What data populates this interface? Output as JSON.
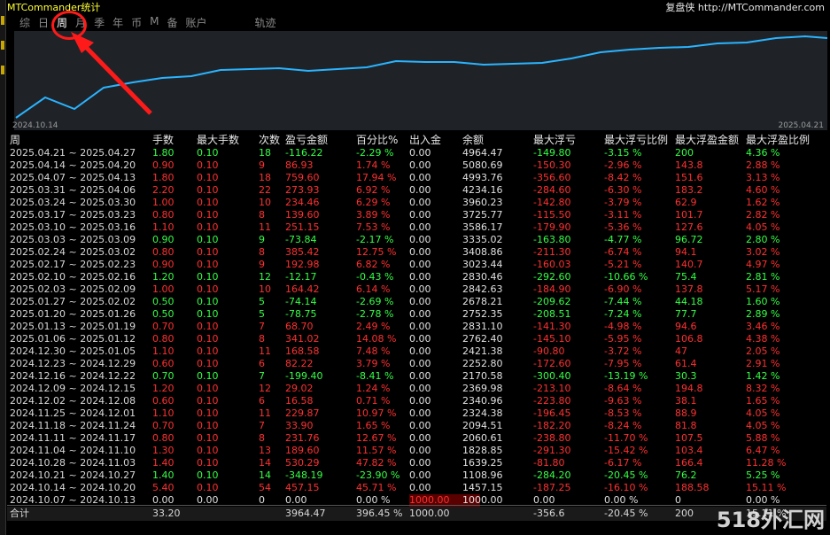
{
  "window": {
    "title": "MTCommander统计",
    "replay_label": "复盘侠 http://MTCommander.com"
  },
  "tabs": [
    "综",
    "日",
    "周",
    "月",
    "季",
    "年",
    "币",
    "M",
    "备",
    "账户",
    "轨迹"
  ],
  "selected_tab": "周",
  "chart": {
    "start_date": "2024.10.14",
    "end_date": "2025.04.21",
    "line_color": "#2ab4ff",
    "background": "#1f2328"
  },
  "table": {
    "headers": [
      "周",
      "手数",
      "最大手数",
      "次数",
      "盈亏金额",
      "百分比%",
      "出入金",
      "余额",
      "最大浮亏",
      "最大浮亏比例",
      "最大浮盈金额",
      "最大浮盈比例"
    ],
    "rows": [
      [
        "2025.04.21 ~ 2025.04.27",
        "1.80",
        "0.10",
        "18",
        "-116.22",
        "-2.29 %",
        "0.00",
        "4964.47",
        "-149.80",
        "-3.15 %",
        "200",
        "4.36 %"
      ],
      [
        "2025.04.14 ~ 2025.04.20",
        "0.90",
        "0.10",
        "9",
        "86.93",
        "1.74 %",
        "0.00",
        "5080.69",
        "-150.30",
        "-2.96 %",
        "143.8",
        "2.88 %"
      ],
      [
        "2025.04.07 ~ 2025.04.13",
        "1.80",
        "0.10",
        "18",
        "759.60",
        "17.94 %",
        "0.00",
        "4993.76",
        "-356.60",
        "-8.42 %",
        "151.6",
        "3.13 %"
      ],
      [
        "2025.03.31 ~ 2025.04.06",
        "2.20",
        "0.10",
        "22",
        "273.93",
        "6.92 %",
        "0.00",
        "4234.16",
        "-284.60",
        "-6.30 %",
        "183.2",
        "4.60 %"
      ],
      [
        "2025.03.24 ~ 2025.03.30",
        "1.00",
        "0.10",
        "10",
        "234.46",
        "6.29 %",
        "0.00",
        "3960.23",
        "-142.80",
        "-3.79 %",
        "62.9",
        "1.62 %"
      ],
      [
        "2025.03.17 ~ 2025.03.23",
        "0.80",
        "0.10",
        "8",
        "139.60",
        "3.89 %",
        "0.00",
        "3725.77",
        "-115.50",
        "-3.11 %",
        "101.7",
        "2.82 %"
      ],
      [
        "2025.03.10 ~ 2025.03.16",
        "1.10",
        "0.10",
        "11",
        "251.15",
        "7.53 %",
        "0.00",
        "3586.17",
        "-179.90",
        "-5.36 %",
        "127.6",
        "4.05 %"
      ],
      [
        "2025.03.03 ~ 2025.03.09",
        "0.90",
        "0.10",
        "9",
        "-73.84",
        "-2.17 %",
        "0.00",
        "3335.02",
        "-163.80",
        "-4.77 %",
        "96.72",
        "2.80 %"
      ],
      [
        "2025.02.24 ~ 2025.03.02",
        "0.80",
        "0.10",
        "8",
        "385.42",
        "12.75 %",
        "0.00",
        "3408.86",
        "-211.30",
        "-6.74 %",
        "94.1",
        "3.02 %"
      ],
      [
        "2025.02.17 ~ 2025.02.23",
        "0.90",
        "0.10",
        "9",
        "192.98",
        "6.82 %",
        "0.00",
        "3023.44",
        "-160.03",
        "-5.21 %",
        "140.7",
        "4.97 %"
      ],
      [
        "2025.02.10 ~ 2025.02.16",
        "1.20",
        "0.10",
        "12",
        "-12.17",
        "-0.43 %",
        "0.00",
        "2830.46",
        "-292.60",
        "-10.66 %",
        "75.4",
        "2.81 %"
      ],
      [
        "2025.02.03 ~ 2025.02.09",
        "1.00",
        "0.10",
        "10",
        "164.42",
        "6.14 %",
        "0.00",
        "2842.63",
        "-184.90",
        "-6.90 %",
        "137.8",
        "5.17 %"
      ],
      [
        "2025.01.27 ~ 2025.02.02",
        "0.50",
        "0.10",
        "5",
        "-74.14",
        "-2.69 %",
        "0.00",
        "2678.21",
        "-209.62",
        "-7.44 %",
        "44.18",
        "1.60 %"
      ],
      [
        "2025.01.20 ~ 2025.01.26",
        "0.50",
        "0.10",
        "5",
        "-78.75",
        "-2.78 %",
        "0.00",
        "2752.35",
        "-208.51",
        "-7.24 %",
        "77.7",
        "2.89 %"
      ],
      [
        "2025.01.13 ~ 2025.01.19",
        "0.70",
        "0.10",
        "7",
        "68.70",
        "2.49 %",
        "0.00",
        "2831.10",
        "-141.30",
        "-4.98 %",
        "94.6",
        "3.46 %"
      ],
      [
        "2025.01.06 ~ 2025.01.12",
        "0.80",
        "0.10",
        "8",
        "341.02",
        "14.08 %",
        "0.00",
        "2762.40",
        "-145.10",
        "-5.95 %",
        "106.8",
        "4.38 %"
      ],
      [
        "2024.12.30 ~ 2025.01.05",
        "1.10",
        "0.10",
        "11",
        "168.58",
        "7.48 %",
        "0.00",
        "2421.38",
        "-90.80",
        "-3.72 %",
        "47",
        "2.05 %"
      ],
      [
        "2024.12.23 ~ 2024.12.29",
        "0.60",
        "0.10",
        "6",
        "82.22",
        "3.79 %",
        "0.00",
        "2252.80",
        "-172.60",
        "-7.95 %",
        "61.4",
        "2.91 %"
      ],
      [
        "2024.12.16 ~ 2024.12.22",
        "0.70",
        "0.10",
        "7",
        "-199.40",
        "-8.41 %",
        "0.00",
        "2170.58",
        "-300.40",
        "-13.19 %",
        "30.3",
        "1.42 %"
      ],
      [
        "2024.12.09 ~ 2024.12.15",
        "1.20",
        "0.10",
        "12",
        "29.02",
        "1.24 %",
        "0.00",
        "2369.98",
        "-213.10",
        "-8.64 %",
        "194.8",
        "8.32 %"
      ],
      [
        "2024.12.02 ~ 2024.12.08",
        "0.60",
        "0.10",
        "6",
        "16.58",
        "0.71 %",
        "0.00",
        "2340.96",
        "-223.80",
        "-9.63 %",
        "38.1",
        "1.65 %"
      ],
      [
        "2024.11.25 ~ 2024.12.01",
        "1.10",
        "0.10",
        "11",
        "229.87",
        "10.97 %",
        "0.00",
        "2324.38",
        "-196.45",
        "-8.53 %",
        "88.9",
        "4.05 %"
      ],
      [
        "2024.11.18 ~ 2024.11.24",
        "0.70",
        "0.10",
        "7",
        "33.90",
        "1.65 %",
        "0.00",
        "2094.51",
        "-182.20",
        "-8.24 %",
        "81.8",
        "4.05 %"
      ],
      [
        "2024.11.11 ~ 2024.11.17",
        "0.80",
        "0.10",
        "8",
        "231.76",
        "12.67 %",
        "0.00",
        "2060.61",
        "-238.80",
        "-11.70 %",
        "107.5",
        "5.88 %"
      ],
      [
        "2024.11.04 ~ 2024.11.10",
        "1.30",
        "0.10",
        "13",
        "189.60",
        "11.57 %",
        "0.00",
        "1828.85",
        "-291.30",
        "-15.42 %",
        "103.4",
        "6.47 %"
      ],
      [
        "2024.10.28 ~ 2024.11.03",
        "1.40",
        "0.10",
        "14",
        "530.29",
        "47.82 %",
        "0.00",
        "1639.25",
        "-81.80",
        "-6.17 %",
        "166.4",
        "11.28 %"
      ],
      [
        "2024.10.21 ~ 2024.10.27",
        "1.40",
        "0.10",
        "14",
        "-348.19",
        "-23.90 %",
        "0.00",
        "1108.96",
        "-284.20",
        "-20.45 %",
        "76.2",
        "5.25 %"
      ],
      [
        "2024.10.14 ~ 2024.10.20",
        "5.40",
        "0.10",
        "54",
        "457.15",
        "45.71 %",
        "0.00",
        "1457.15",
        "-187.25",
        "-16.10 %",
        "188.58",
        "15.11 %"
      ],
      [
        "2024.10.07 ~ 2024.10.13",
        "0.00",
        "0.00",
        "0",
        "0.00",
        "0.00 %",
        "1000.00",
        "1000.00",
        "0.00",
        "0.00 %",
        "0",
        "0.00 %"
      ]
    ],
    "total": {
      "label": "合计",
      "lots": "33.20",
      "pnl": "3964.47",
      "pct": "396.45 %",
      "deposit": "1000.00",
      "max_float_loss": "-356.6",
      "max_float_loss_pct": "-20.45 %",
      "max_float_profit": "200",
      "max_float_profit_pct": "15.11 %"
    }
  },
  "watermark": "518外汇网"
}
